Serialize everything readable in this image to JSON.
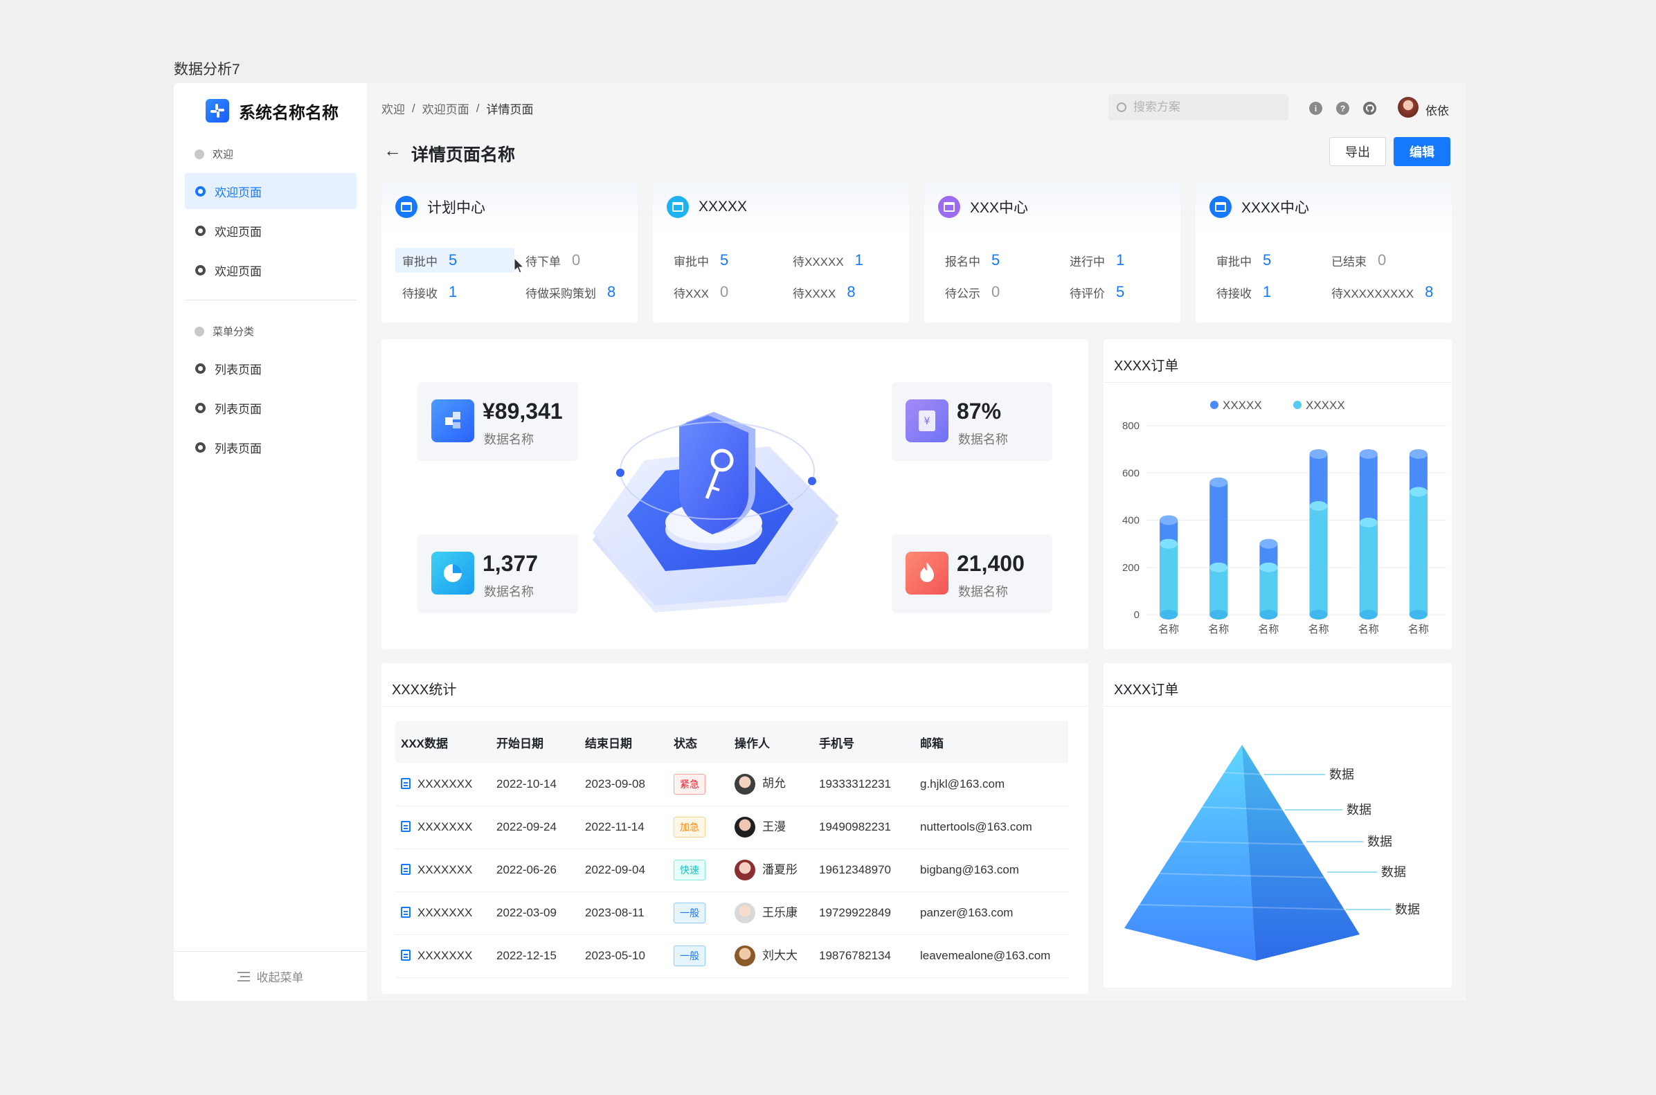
{
  "page_title": "数据分析7",
  "brand": {
    "name": "系统名称名称"
  },
  "sidebar": {
    "group1": "欢迎",
    "items1": [
      {
        "label": "欢迎页面",
        "active": true
      },
      {
        "label": "欢迎页面",
        "active": false
      },
      {
        "label": "欢迎页面",
        "active": false
      }
    ],
    "group2": "菜单分类",
    "items2": [
      {
        "label": "列表页面"
      },
      {
        "label": "列表页面"
      },
      {
        "label": "列表页面"
      }
    ],
    "collapse_label": "收起菜单"
  },
  "header": {
    "breadcrumb": [
      "欢迎",
      "欢迎页面",
      "详情页面"
    ],
    "search_placeholder": "搜索方案",
    "username": "依依"
  },
  "detail": {
    "title": "详情页面名称",
    "export_label": "导出",
    "edit_label": "编辑"
  },
  "stat_cards": [
    {
      "title": "计划中心",
      "color": "#1677ff",
      "items": [
        {
          "k": "审批中",
          "v": "5"
        },
        {
          "k": "待下单",
          "v": "0"
        },
        {
          "k": "待接收",
          "v": "1"
        },
        {
          "k": "待做采购策划",
          "v": "8"
        }
      ]
    },
    {
      "title": "XXXXX",
      "color": "#1fb2f0",
      "items": [
        {
          "k": "审批中",
          "v": "5"
        },
        {
          "k": "待XXXXX",
          "v": "1"
        },
        {
          "k": "待XXX",
          "v": "0"
        },
        {
          "k": "待XXXX",
          "v": "8"
        }
      ]
    },
    {
      "title": "XXX中心",
      "color": "#9b6cf0",
      "items": [
        {
          "k": "报名中",
          "v": "5"
        },
        {
          "k": "进行中",
          "v": "1"
        },
        {
          "k": "待公示",
          "v": "0"
        },
        {
          "k": "待评价",
          "v": "5"
        }
      ]
    },
    {
      "title": "XXXX中心",
      "color": "#1677ff",
      "items": [
        {
          "k": "审批中",
          "v": "5"
        },
        {
          "k": "已结束",
          "v": "0"
        },
        {
          "k": "待接收",
          "v": "1"
        },
        {
          "k": "待XXXXXXXXX",
          "v": "8"
        }
      ]
    }
  ],
  "metrics": [
    {
      "value": "¥89,341",
      "label": "数据名称"
    },
    {
      "value": "87%",
      "label": "数据名称"
    },
    {
      "value": "1,377",
      "label": "数据名称"
    },
    {
      "value": "21,400",
      "label": "数据名称"
    }
  ],
  "bar_card": {
    "title": "XXXX订单"
  },
  "chart_data": {
    "type": "bar",
    "categories": [
      "名称",
      "名称",
      "名称",
      "名称",
      "名称",
      "名称"
    ],
    "series": [
      {
        "name": "XXXXX",
        "values": [
          400,
          560,
          300,
          680,
          680,
          680
        ]
      },
      {
        "name": "XXXXX",
        "values": [
          300,
          200,
          200,
          460,
          390,
          520
        ]
      }
    ],
    "ylim": [
      0,
      800
    ],
    "yticks": [
      0,
      200,
      400,
      600,
      800
    ],
    "legend": "top-center",
    "colors": [
      "#4a8cf7",
      "#56ccf2"
    ]
  },
  "table_card": {
    "title": "XXXX统计",
    "columns": [
      "XXX数据",
      "开始日期",
      "结束日期",
      "状态",
      "操作人",
      "手机号",
      "邮箱"
    ],
    "rows": [
      {
        "name": "XXXXXXX",
        "start": "2022-10-14",
        "end": "2023-09-08",
        "status": "紧急",
        "tag": "red",
        "operator": "胡允",
        "phone": "19333312231",
        "email": "g.hjkl@163.com"
      },
      {
        "name": "XXXXXXX",
        "start": "2022-09-24",
        "end": "2022-11-14",
        "status": "加急",
        "tag": "orange",
        "operator": "王漫",
        "phone": "19490982231",
        "email": "nuttertools@163.com"
      },
      {
        "name": "XXXXXXX",
        "start": "2022-06-26",
        "end": "2022-09-04",
        "status": "快速",
        "tag": "cyan",
        "operator": "潘夏彤",
        "phone": "19612348970",
        "email": "bigbang@163.com"
      },
      {
        "name": "XXXXXXX",
        "start": "2022-03-09",
        "end": "2023-08-11",
        "status": "一般",
        "tag": "blue",
        "operator": "王乐康",
        "phone": "19729922849",
        "email": "panzer@163.com"
      },
      {
        "name": "XXXXXXX",
        "start": "2022-12-15",
        "end": "2023-05-10",
        "status": "一般",
        "tag": "blue",
        "operator": "刘大大",
        "phone": "19876782134",
        "email": "leavemealone@163.com"
      }
    ]
  },
  "pyramid_card": {
    "title": "XXXX订单",
    "labels": [
      "数据",
      "数据",
      "数据",
      "数据",
      "数据"
    ]
  }
}
